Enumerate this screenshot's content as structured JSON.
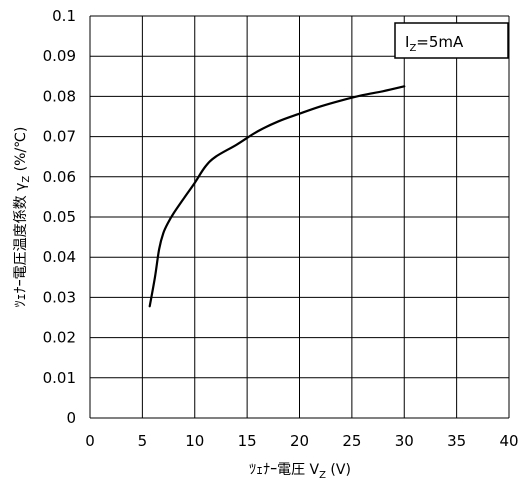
{
  "chart_data": {
    "type": "line",
    "xlabel": "ﾂｪﾅｰ電圧 V",
    "xlabel_sub": "Z",
    "xlabel_unit": " (V)",
    "ylabel": "ﾂｪﾅｰ電圧温度係数 γ",
    "ylabel_sub": "Z",
    "ylabel_unit": "  (%/℃)",
    "legend": {
      "text": "I",
      "sub": "Z",
      "rest": "=5mA",
      "position": "top-right"
    },
    "xlim": [
      0,
      40
    ],
    "ylim": [
      0,
      0.1
    ],
    "x_ticks": [
      "0",
      "5",
      "10",
      "15",
      "20",
      "25",
      "30",
      "35",
      "40"
    ],
    "y_ticks": [
      "0",
      "0.01",
      "0.02",
      "0.03",
      "0.04",
      "0.05",
      "0.06",
      "0.07",
      "0.08",
      "0.09",
      "0.1"
    ],
    "grid": true,
    "series": [
      {
        "x": [
          5.7,
          6.2,
          6.6,
          7.0,
          7.5,
          8.0,
          9.0,
          10.0,
          11.0,
          12.0,
          14.0,
          16.0,
          18.0,
          20.0,
          22.0,
          24.0,
          26.0,
          28.0,
          30.0
        ],
        "y": [
          0.0278,
          0.035,
          0.042,
          0.046,
          0.0488,
          0.051,
          0.0548,
          0.0585,
          0.0625,
          0.065,
          0.068,
          0.0713,
          0.0738,
          0.0757,
          0.0775,
          0.079,
          0.0803,
          0.0813,
          0.0825
        ]
      }
    ],
    "colors": {
      "line": "#000000",
      "grid": "#000000",
      "background": "#ffffff"
    }
  }
}
